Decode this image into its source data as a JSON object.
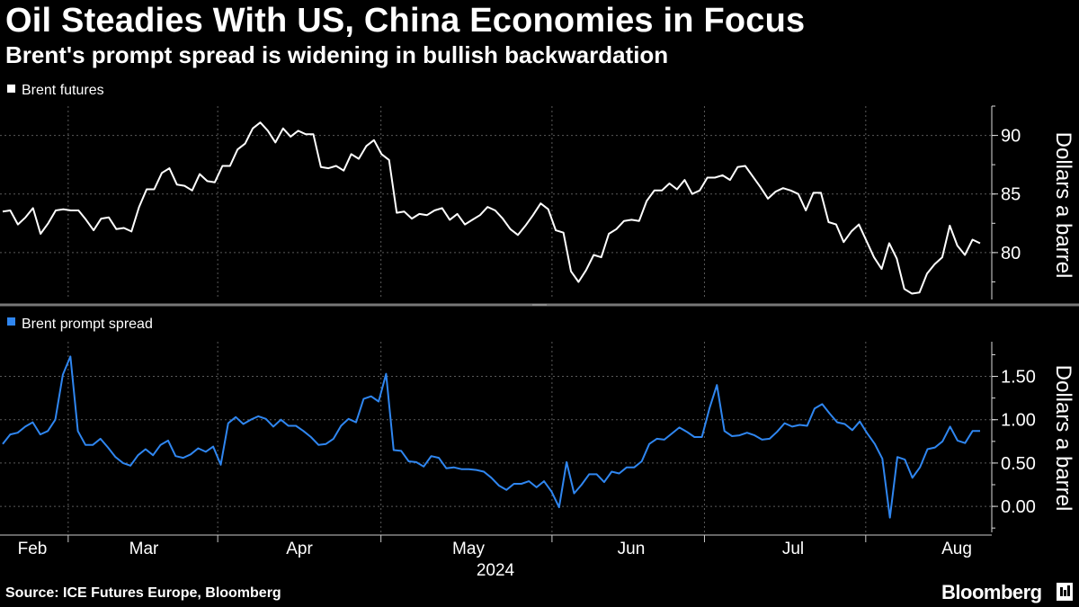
{
  "header": {
    "title": "Oil Steadies With US, China Economies in Focus",
    "subtitle": "Brent's prompt spread is widening in bullish backwardation"
  },
  "footer": {
    "source": "Source: ICE Futures Europe, Bloomberg",
    "brand": "Bloomberg"
  },
  "colors": {
    "background": "#000000",
    "futures_line": "#ffffff",
    "spread_line": "#2f86f0",
    "grid": "#5a5a5a"
  },
  "chart_data": [
    {
      "type": "line",
      "legend": "Brent futures",
      "ylabel": "Dollars a barrel",
      "ylim": [
        76,
        92.5
      ],
      "yticks": [
        {
          "value": 80,
          "label": "80"
        },
        {
          "value": 85,
          "label": "85"
        },
        {
          "value": 90,
          "label": "90"
        }
      ],
      "series": [
        {
          "name": "Brent futures",
          "values": [
            83.5,
            83.6,
            82.4,
            83.0,
            83.8,
            81.6,
            82.5,
            83.6,
            83.7,
            83.6,
            83.6,
            82.8,
            81.9,
            82.9,
            83.0,
            82.0,
            82.1,
            81.8,
            83.9,
            85.4,
            85.4,
            86.8,
            87.2,
            85.8,
            85.7,
            85.3,
            86.7,
            86.1,
            86.0,
            87.4,
            87.4,
            88.8,
            89.3,
            90.6,
            91.1,
            90.4,
            89.4,
            90.6,
            89.9,
            90.4,
            90.1,
            90.1,
            87.3,
            87.2,
            87.4,
            87.0,
            88.4,
            88.0,
            89.1,
            89.6,
            88.4,
            87.9,
            83.4,
            83.5,
            82.9,
            83.3,
            83.2,
            83.6,
            83.8,
            82.8,
            83.3,
            82.4,
            82.8,
            83.2,
            83.9,
            83.6,
            82.9,
            82.0,
            81.5,
            82.3,
            83.2,
            84.2,
            83.7,
            81.9,
            81.7,
            78.4,
            77.5,
            78.5,
            79.8,
            79.6,
            81.6,
            82.0,
            82.7,
            82.8,
            82.7,
            84.4,
            85.3,
            85.3,
            85.9,
            85.4,
            86.2,
            85.0,
            85.3,
            86.4,
            86.4,
            86.6,
            86.2,
            87.3,
            87.4,
            86.5,
            85.6,
            84.6,
            85.2,
            85.5,
            85.3,
            85.0,
            83.6,
            85.1,
            85.1,
            82.6,
            82.4,
            80.9,
            81.8,
            82.4,
            81.0,
            79.6,
            78.6,
            80.8,
            79.5,
            76.9,
            76.5,
            76.6,
            78.2,
            79.0,
            79.6,
            82.3,
            80.6,
            79.8,
            81.1,
            80.8
          ]
        }
      ]
    },
    {
      "type": "line",
      "legend": "Brent prompt spread",
      "ylabel": "Dollars a barrel",
      "ylim": [
        -0.3,
        1.9
      ],
      "yticks": [
        {
          "value": 0,
          "label": "0.00"
        },
        {
          "value": 0.5,
          "label": "0.50"
        },
        {
          "value": 1.0,
          "label": "1.00"
        },
        {
          "value": 1.5,
          "label": "1.50"
        }
      ],
      "series": [
        {
          "name": "Brent prompt spread",
          "values": [
            0.72,
            0.83,
            0.85,
            0.92,
            0.97,
            0.83,
            0.87,
            1.0,
            1.52,
            1.73,
            0.87,
            0.71,
            0.71,
            0.78,
            0.68,
            0.57,
            0.5,
            0.47,
            0.59,
            0.66,
            0.59,
            0.71,
            0.76,
            0.58,
            0.56,
            0.6,
            0.67,
            0.63,
            0.69,
            0.48,
            0.96,
            1.03,
            0.95,
            1.0,
            1.04,
            1.01,
            0.92,
            1.0,
            0.93,
            0.93,
            0.87,
            0.8,
            0.71,
            0.72,
            0.78,
            0.93,
            1.01,
            0.97,
            1.24,
            1.27,
            1.21,
            1.53,
            0.65,
            0.64,
            0.52,
            0.51,
            0.46,
            0.58,
            0.56,
            0.44,
            0.45,
            0.43,
            0.43,
            0.42,
            0.4,
            0.33,
            0.24,
            0.19,
            0.26,
            0.26,
            0.29,
            0.22,
            0.29,
            0.17,
            -0.01,
            0.51,
            0.15,
            0.25,
            0.37,
            0.37,
            0.28,
            0.4,
            0.38,
            0.45,
            0.45,
            0.52,
            0.72,
            0.78,
            0.77,
            0.84,
            0.91,
            0.86,
            0.8,
            0.8,
            1.13,
            1.4,
            0.87,
            0.81,
            0.82,
            0.85,
            0.82,
            0.77,
            0.78,
            0.86,
            0.96,
            0.92,
            0.94,
            0.93,
            1.13,
            1.18,
            1.07,
            0.97,
            0.95,
            0.88,
            0.98,
            0.84,
            0.72,
            0.55,
            -0.13,
            0.57,
            0.54,
            0.33,
            0.45,
            0.66,
            0.68,
            0.75,
            0.92,
            0.76,
            0.73,
            0.87,
            0.87
          ]
        }
      ]
    }
  ],
  "x_axis": {
    "year_label": "2024",
    "months": [
      "Feb",
      "Mar",
      "Apr",
      "May",
      "Jun",
      "Jul",
      "Aug"
    ]
  }
}
